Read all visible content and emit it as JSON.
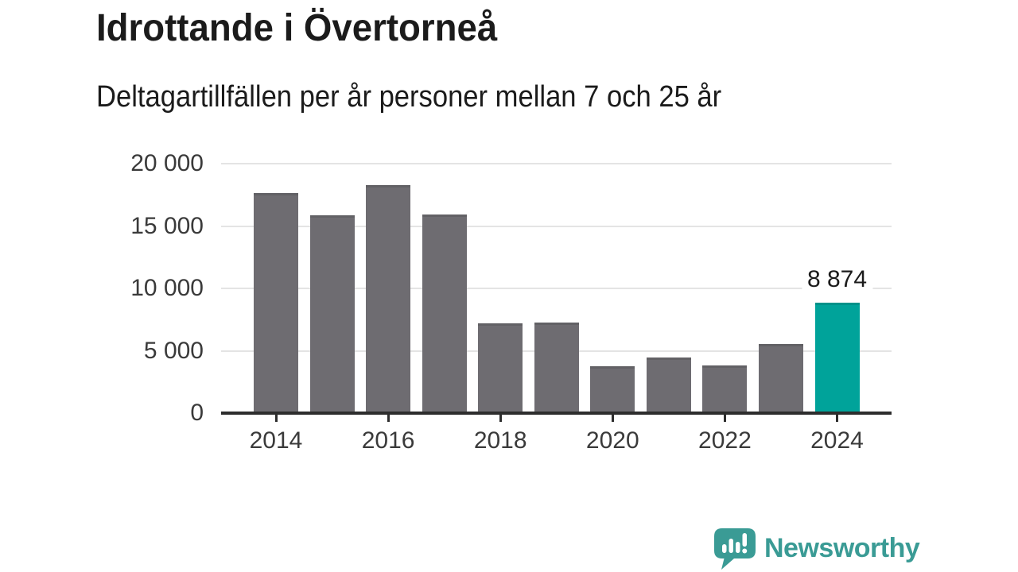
{
  "header": {
    "title": "Idrottande i Övertorneå",
    "subtitle": "Deltagartillfällen per år personer mellan 7 och 25 år"
  },
  "chart_data": {
    "type": "bar",
    "title": "Idrottande i Övertorneå",
    "subtitle": "Deltagartillfällen per år personer mellan 7 och 25 år",
    "categories": [
      "2014",
      "2015",
      "2016",
      "2017",
      "2018",
      "2019",
      "2020",
      "2021",
      "2022",
      "2023",
      "2024"
    ],
    "values": [
      17650,
      15850,
      18250,
      15950,
      7200,
      7250,
      3750,
      4450,
      3850,
      5550,
      8874
    ],
    "highlight_category": "2024",
    "annotations": [
      {
        "category": "2024",
        "label": "8 874",
        "value": 8874
      }
    ],
    "ylim": [
      0,
      20000
    ],
    "yticks": [
      {
        "value": 0,
        "label": "0"
      },
      {
        "value": 5000,
        "label": "5 000"
      },
      {
        "value": 10000,
        "label": "10 000"
      },
      {
        "value": 15000,
        "label": "15 000"
      },
      {
        "value": 20000,
        "label": "20 000"
      }
    ],
    "xticks": [
      "2014",
      "2016",
      "2018",
      "2020",
      "2022",
      "2024"
    ],
    "xlabel": "",
    "ylabel": "",
    "grid": "horizontal",
    "legend": "none",
    "colors": {
      "bar": "#6e6c71",
      "highlight": "#00a39a",
      "gridline": "#e4e4e4",
      "axis_line": "#2d2d2d",
      "tick_text": "#3a3a3a",
      "annotation_text": "#1b1b1b"
    }
  },
  "branding": {
    "name": "Newsworthy",
    "color": "#3a9b95"
  }
}
